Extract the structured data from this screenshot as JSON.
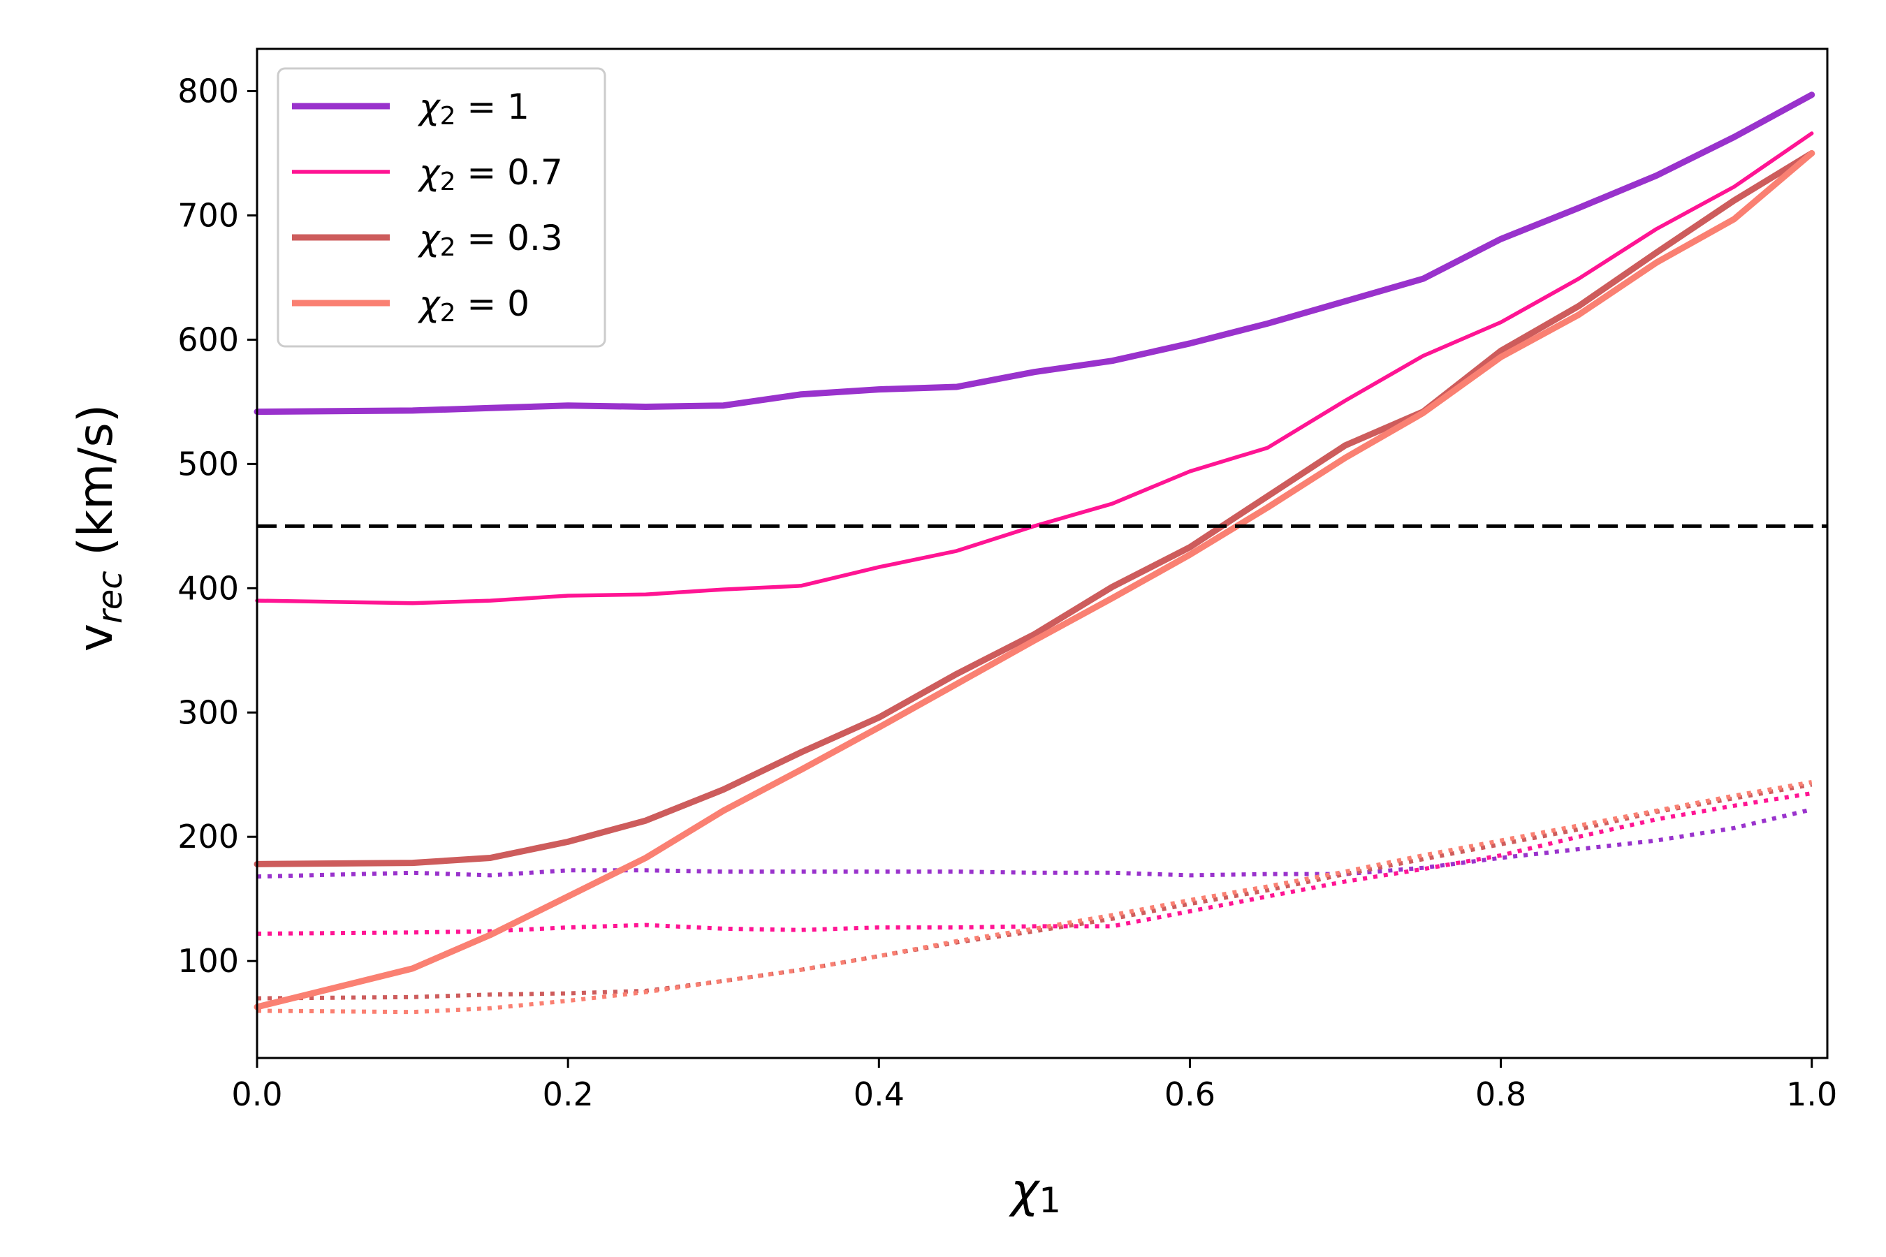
{
  "chart_data": {
    "type": "line",
    "xlabel": "χ",
    "xlabel_sub": "1",
    "ylabel": "v",
    "ylabel_sub": "rec",
    "ylabel_unit": " (km/s)",
    "xlim": [
      0.0,
      1.01
    ],
    "ylim": [
      22,
      834
    ],
    "xticks": [
      "0.0",
      "0.2",
      "0.4",
      "0.6",
      "0.8",
      "1.0"
    ],
    "yticks": [
      "100",
      "200",
      "300",
      "400",
      "500",
      "600",
      "700",
      "800"
    ],
    "grid": false,
    "legend_position": "top-left",
    "reference_line": {
      "y": 450,
      "style": "dashed",
      "color": "#000000"
    },
    "x": [
      0.0,
      0.1,
      0.15,
      0.2,
      0.25,
      0.3,
      0.35,
      0.4,
      0.45,
      0.5,
      0.55,
      0.6,
      0.65,
      0.7,
      0.75,
      0.8,
      0.85,
      0.9,
      0.95,
      1.0
    ],
    "series": [
      {
        "name": "χ₂ = 1",
        "legend_main": "χ",
        "legend_sub": "2",
        "legend_value": " = 1",
        "color": "#9932CC",
        "solid": [
          542,
          543,
          545,
          547,
          546,
          547,
          556,
          560,
          562,
          574,
          583,
          597,
          613,
          631,
          649,
          681,
          706,
          732,
          763,
          797
        ],
        "dotted": [
          168,
          171,
          169,
          173,
          173,
          172,
          172,
          172,
          172,
          171,
          171,
          169,
          170,
          170,
          175,
          183,
          190,
          197,
          207,
          222
        ]
      },
      {
        "name": "χ₂ = 0.7",
        "legend_main": "χ",
        "legend_sub": "2",
        "legend_value": " = 0.7",
        "color": "#FF1493",
        "solid": [
          390,
          388,
          390,
          394,
          395,
          399,
          402,
          417,
          430,
          450,
          468,
          494,
          513,
          551,
          587,
          614,
          649,
          689,
          723,
          766
        ],
        "dotted": [
          122,
          123,
          124,
          127,
          129,
          126,
          125,
          127,
          127,
          128,
          128,
          140,
          152,
          164,
          174,
          185,
          200,
          214,
          225,
          235
        ]
      },
      {
        "name": "χ₂ = 0.3",
        "legend_main": "χ",
        "legend_sub": "2",
        "legend_value": " = 0.3",
        "color": "#CD5C5C",
        "solid": [
          178,
          179,
          183,
          196,
          213,
          238,
          268,
          296,
          331,
          363,
          401,
          433,
          474,
          515,
          542,
          591,
          627,
          670,
          712,
          750
        ],
        "dotted": [
          70,
          71,
          73,
          74,
          76,
          84,
          93,
          104,
          115,
          124,
          134,
          146,
          157,
          170,
          182,
          194,
          206,
          220,
          231,
          242
        ]
      },
      {
        "name": "χ₂ = 0",
        "legend_main": "χ",
        "legend_sub": "2",
        "legend_value": " = 0",
        "color": "#FA8072",
        "solid": [
          63,
          94,
          121,
          152,
          183,
          221,
          254,
          288,
          323,
          358,
          392,
          427,
          465,
          505,
          541,
          586,
          620,
          662,
          697,
          750
        ],
        "dotted": [
          60,
          59,
          62,
          68,
          75,
          84,
          93,
          104,
          116,
          126,
          137,
          149,
          160,
          172,
          185,
          197,
          209,
          221,
          233,
          244
        ]
      }
    ]
  }
}
